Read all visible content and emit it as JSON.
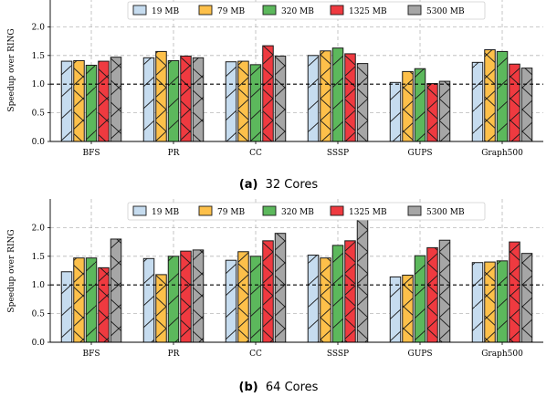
{
  "colors": {
    "series": [
      "#c6dcef",
      "#fdc04a",
      "#5cb85c",
      "#ef3a40",
      "#a6a6a6"
    ],
    "grid": "#b8b8b8",
    "reference_line": "#000000"
  },
  "chart_data": [
    {
      "type": "bar",
      "caption_tag": "(a)",
      "caption_text": "32 Cores",
      "ylabel": "Speedup over RING",
      "ylim": [
        0,
        2.5
      ],
      "yticks": [
        "0.0",
        "0.5",
        "1.0",
        "1.5",
        "2.0"
      ],
      "reference_line": 1.0,
      "grid": true,
      "legend_position": "top-center",
      "categories": [
        "BFS",
        "PR",
        "CC",
        "SSSP",
        "GUPS",
        "Graph500"
      ],
      "series": [
        {
          "name": "19 MB",
          "values": [
            1.4,
            1.46,
            1.39,
            1.5,
            1.03,
            1.38
          ]
        },
        {
          "name": "79 MB",
          "values": [
            1.41,
            1.57,
            1.4,
            1.58,
            1.22,
            1.6
          ]
        },
        {
          "name": "320 MB",
          "values": [
            1.33,
            1.41,
            1.34,
            1.63,
            1.27,
            1.57
          ]
        },
        {
          "name": "1325 MB",
          "values": [
            1.4,
            1.49,
            1.67,
            1.53,
            1.01,
            1.35
          ]
        },
        {
          "name": "5300 MB",
          "values": [
            1.47,
            1.46,
            1.49,
            1.36,
            1.05,
            1.28
          ]
        }
      ]
    },
    {
      "type": "bar",
      "caption_tag": "(b)",
      "caption_text": "64 Cores",
      "ylabel": "Speedup over RING",
      "ylim": [
        0,
        2.5
      ],
      "yticks": [
        "0.0",
        "0.5",
        "1.0",
        "1.5",
        "2.0"
      ],
      "reference_line": 1.0,
      "grid": true,
      "legend_position": "top-center",
      "categories": [
        "BFS",
        "PR",
        "CC",
        "SSSP",
        "GUPS",
        "Graph500"
      ],
      "series": [
        {
          "name": "19 MB",
          "values": [
            1.23,
            1.46,
            1.43,
            1.52,
            1.14,
            1.39
          ]
        },
        {
          "name": "79 MB",
          "values": [
            1.47,
            1.18,
            1.58,
            1.47,
            1.17,
            1.4
          ]
        },
        {
          "name": "320 MB",
          "values": [
            1.47,
            1.5,
            1.5,
            1.69,
            1.51,
            1.42
          ]
        },
        {
          "name": "1325 MB",
          "values": [
            1.3,
            1.59,
            1.77,
            1.77,
            1.65,
            1.75
          ]
        },
        {
          "name": "5300 MB",
          "values": [
            1.8,
            1.61,
            1.9,
            2.3,
            1.78,
            1.55
          ]
        }
      ]
    }
  ]
}
